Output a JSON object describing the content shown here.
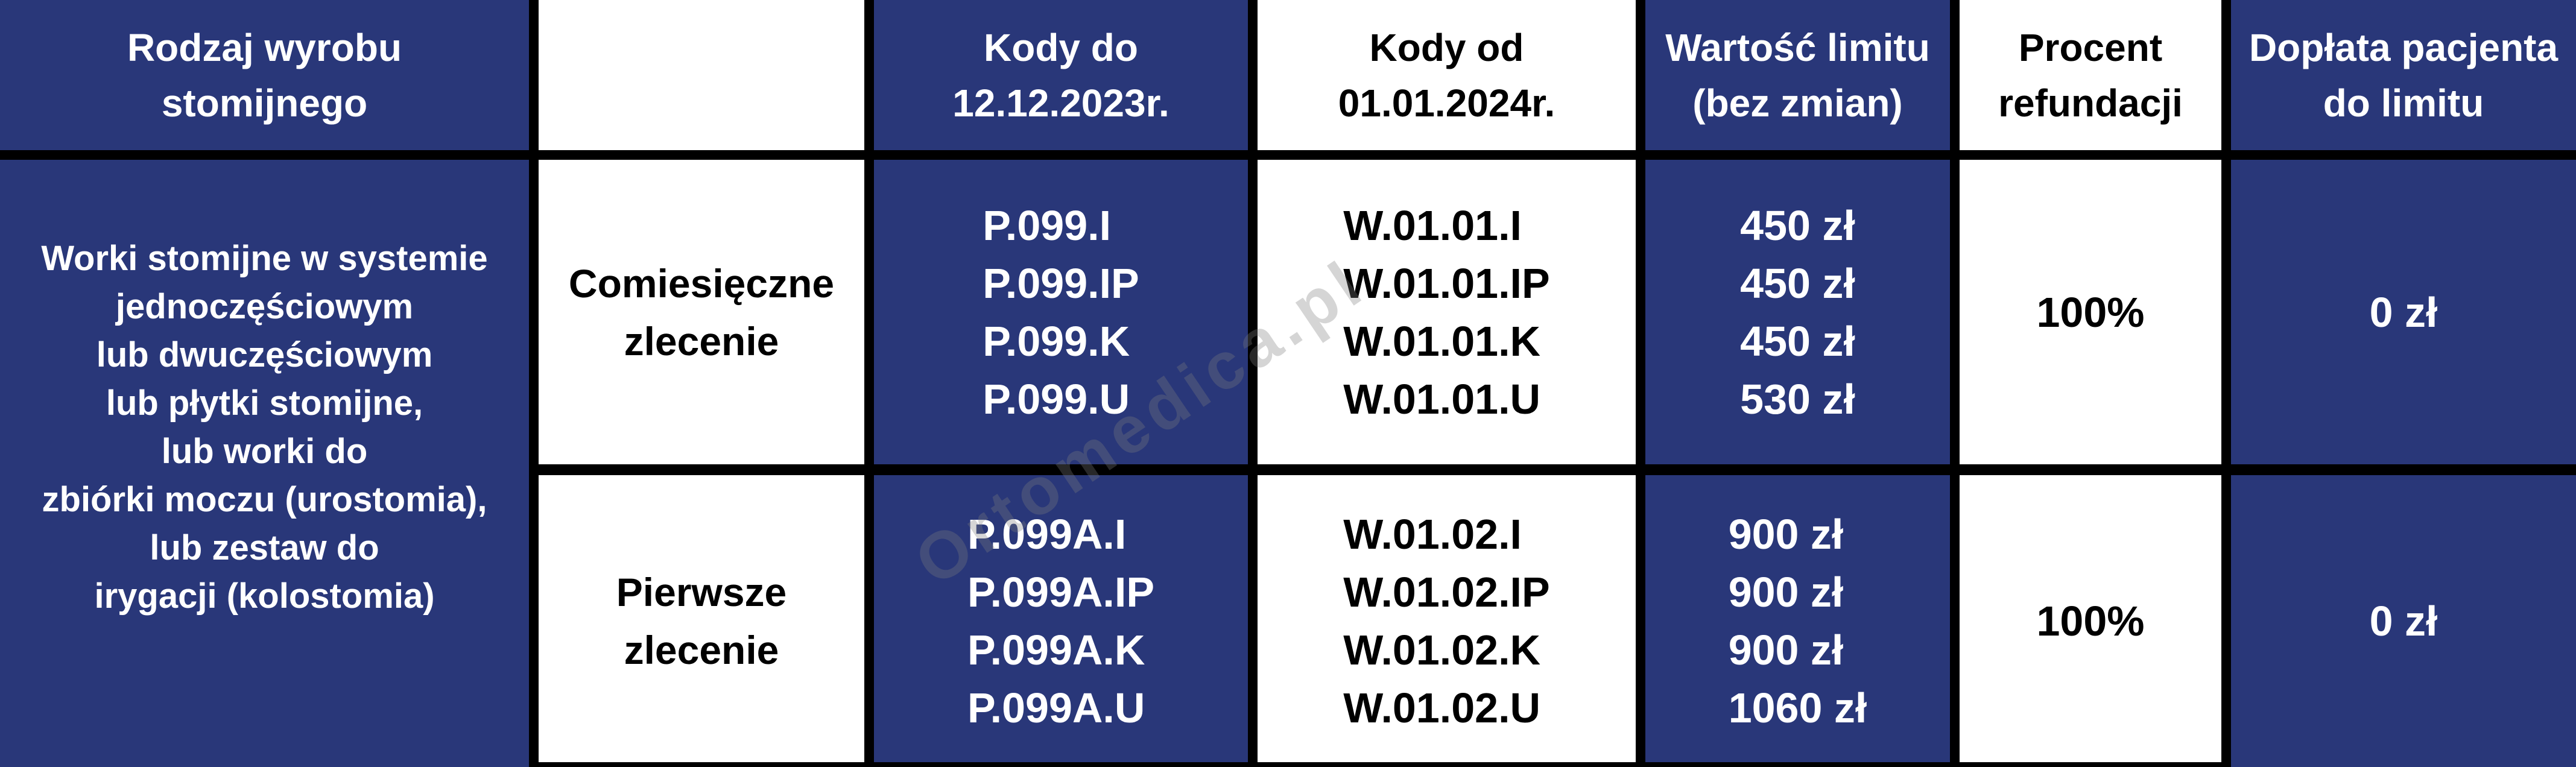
{
  "table": {
    "header": {
      "product_type": [
        "Rodzaj wyrobu",
        "stomijnego"
      ],
      "order_col": "",
      "codes_old": [
        "Kody do",
        "12.12.2023r."
      ],
      "codes_new": [
        "Kody od",
        "01.01.2024r."
      ],
      "limit_value": [
        "Wartość limitu",
        "(bez zmian)"
      ],
      "refund_percent": [
        "Procent",
        "refundacji"
      ],
      "patient_copay": [
        "Dopłata pacjenta",
        "do limitu"
      ]
    },
    "product_type_lines": [
      "Worki stomijne w systemie",
      "jednoczęściowym",
      "lub dwuczęściowym",
      "lub płytki stomijne,",
      "lub worki do",
      "zbiórki moczu (urostomia),",
      "lub zestaw do",
      "irygacji (kolostomia)"
    ],
    "rows": [
      {
        "order": [
          "Comiesięczne",
          "zlecenie"
        ],
        "codes_old": [
          "P.099.I",
          "P.099.IP",
          "P.099.K",
          "P.099.U"
        ],
        "codes_new": [
          "W.01.01.I",
          "W.01.01.IP",
          "W.01.01.K",
          "W.01.01.U"
        ],
        "limits": [
          "450 zł",
          "450 zł",
          "450 zł",
          "530 zł"
        ],
        "refund": "100%",
        "copay": "0 zł"
      },
      {
        "order": [
          "Pierwsze",
          "zlecenie"
        ],
        "codes_old": [
          "P.099A.I",
          "P.099A.IP",
          "P.099A.K",
          "P.099A.U"
        ],
        "codes_new": [
          "W.01.02.I",
          "W.01.02.IP",
          "W.01.02.K",
          "W.01.02.U"
        ],
        "limits": [
          "900 zł",
          "900 zł",
          "900 zł",
          "1060 zł"
        ],
        "refund": "100%",
        "copay": "0 zł"
      }
    ]
  },
  "watermark": "Ortomedica.pl",
  "colors": {
    "navy": "#293779",
    "white": "#FFFFFF",
    "border": "#000000"
  }
}
